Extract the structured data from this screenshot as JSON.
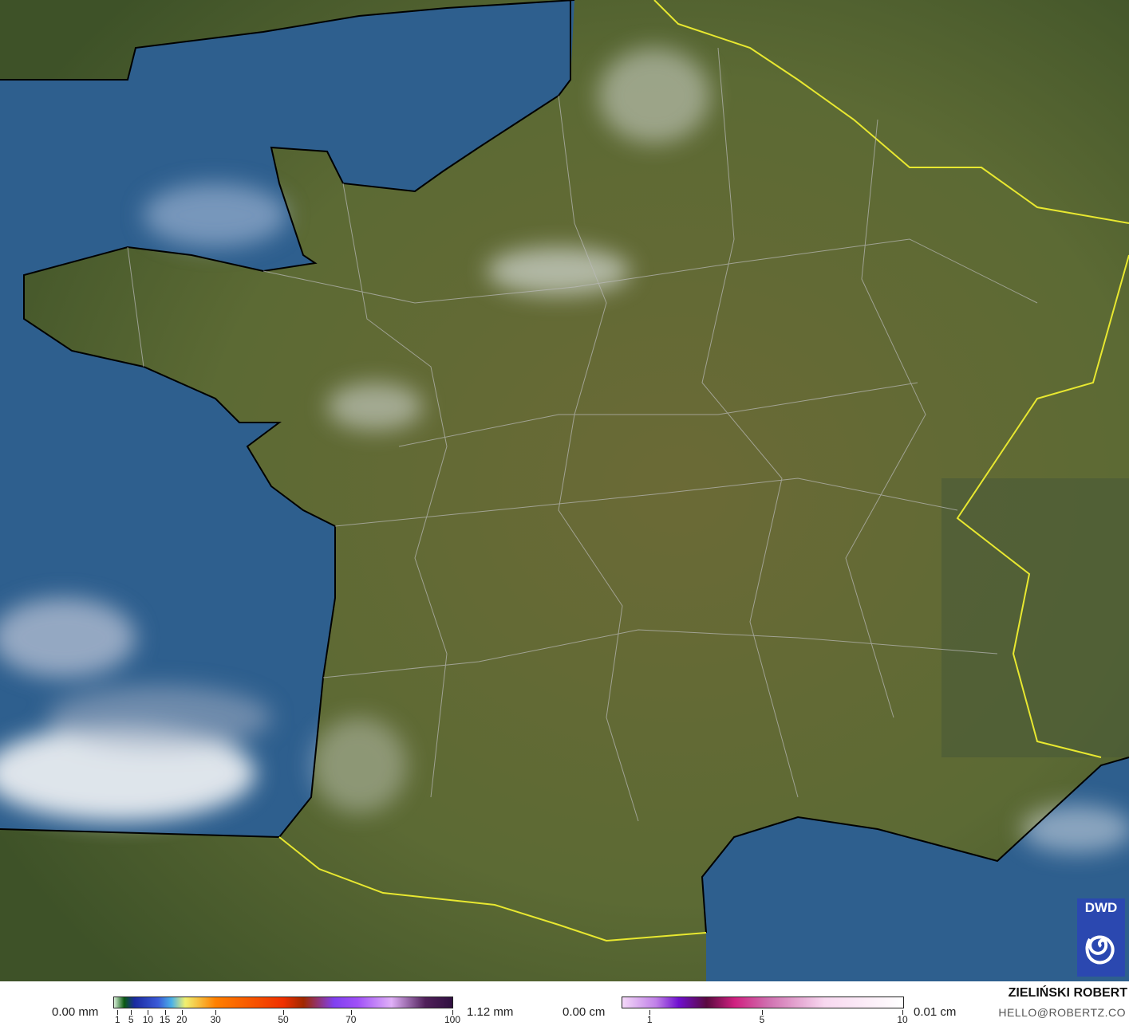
{
  "map": {
    "colors": {
      "sea": "#2e5f8e",
      "land": "#5b6a34",
      "border_country": "#e8e830",
      "border_region": "#c8c8c8",
      "coast": "#000000"
    }
  },
  "logo": {
    "text": "DWD",
    "color": "#2b48b0"
  },
  "legend_rain": {
    "min_label": "0.00 mm",
    "max_label": "1.12 mm",
    "ticks": [
      "1",
      "5",
      "10",
      "15",
      "20",
      "30",
      "50",
      "70",
      "100"
    ]
  },
  "legend_snow": {
    "min_label": "0.00 cm",
    "max_label": "0.01 cm",
    "ticks": [
      "1",
      "5",
      "10"
    ]
  },
  "credit": {
    "name": "ZIELIŃSKI ROBERT",
    "email": "HELLO@ROBERTZ.CO"
  }
}
